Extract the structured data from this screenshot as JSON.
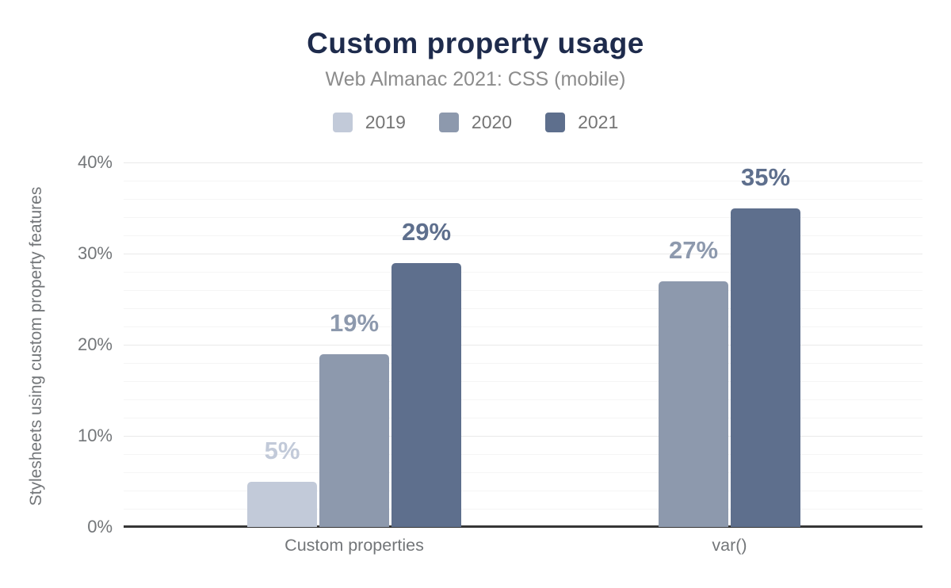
{
  "chart_data": {
    "type": "bar",
    "title": "Custom property usage",
    "subtitle": "Web Almanac 2021: CSS (mobile)",
    "ylabel": "Stylesheets using custom property features",
    "xlabel": "",
    "categories": [
      "Custom properties",
      "var()"
    ],
    "series": [
      {
        "name": "2019",
        "color": "#c2cad9",
        "values": [
          5,
          null
        ],
        "labels": [
          "5%",
          null
        ]
      },
      {
        "name": "2020",
        "color": "#8d99ad",
        "values": [
          19,
          27
        ],
        "labels": [
          "19%",
          "27%"
        ]
      },
      {
        "name": "2021",
        "color": "#5e6f8d",
        "values": [
          29,
          35
        ],
        "labels": [
          "29%",
          "35%"
        ]
      }
    ],
    "ylim": [
      0,
      40
    ],
    "yticks": [
      {
        "value": 0,
        "label": "0%"
      },
      {
        "value": 10,
        "label": "10%"
      },
      {
        "value": 20,
        "label": "20%"
      },
      {
        "value": 30,
        "label": "30%"
      },
      {
        "value": 40,
        "label": "40%"
      }
    ],
    "grid": {
      "major_step": 10,
      "minor_step": 2
    },
    "legend_position": "top",
    "value_labels_shown": true
  },
  "colors": {
    "title": "#1e2b4c",
    "subtitle": "#8c8c8c",
    "axis_text": "#737679",
    "grid_major": "#e9e9e9",
    "grid_minor": "#f5f5f5",
    "baseline": "#363636",
    "background": "#ffffff"
  }
}
